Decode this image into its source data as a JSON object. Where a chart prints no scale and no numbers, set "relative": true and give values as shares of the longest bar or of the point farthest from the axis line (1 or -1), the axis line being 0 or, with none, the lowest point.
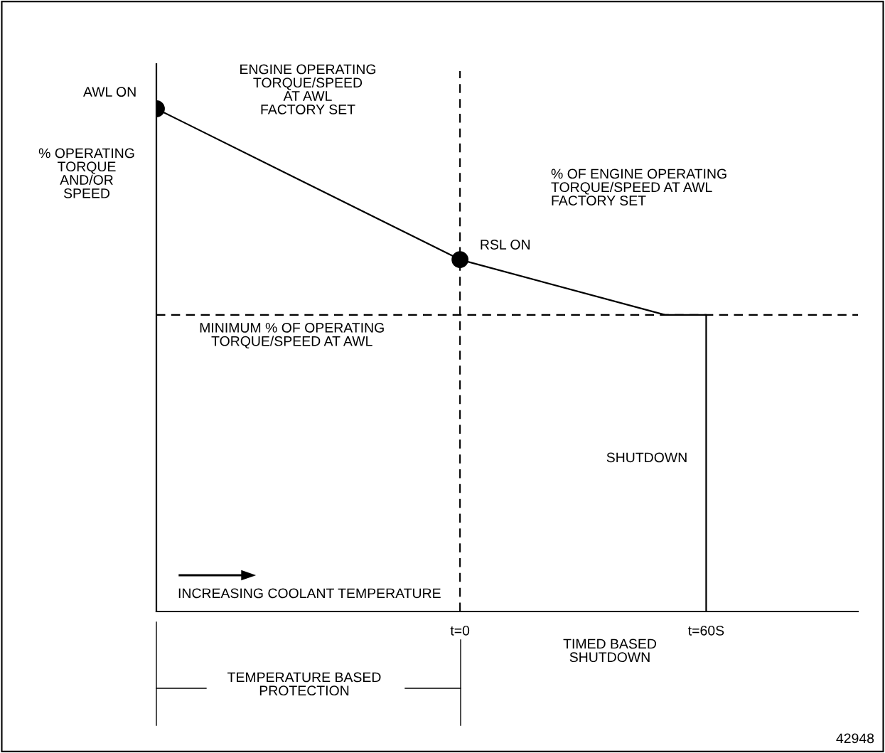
{
  "chart_data": {
    "type": "line",
    "relative": true,
    "ylabel": "% OPERATING\nTORQUE\nAND/OR\nSPEED",
    "xlim": [
      -74,
      97
    ],
    "xticks": [
      {
        "value": 0,
        "label": "t=0"
      },
      {
        "value": 60,
        "label": "t=60S"
      }
    ],
    "series": [
      {
        "color": "#000000",
        "marker": "none",
        "x": [
          -74,
          0,
          50,
          60,
          60
        ],
        "values": [
          1,
          0.7,
          0.59,
          0.59,
          0
        ]
      },
      {
        "type": "scatter",
        "color": "#000000",
        "marker": "circle",
        "x": [
          -74,
          0
        ],
        "values": [
          1,
          0.7
        ]
      }
    ],
    "ref_lines": [
      {
        "axis": "y",
        "value": 0.59,
        "label": "MINIMUM % OF OPERATING\nTORQUE/SPEED AT AWL",
        "color": "#000000",
        "line_style": "dashed"
      },
      {
        "axis": "x",
        "value": 0,
        "color": "#000000",
        "line_style": "dashed"
      }
    ],
    "annotations": [
      {
        "text": "AWL ON",
        "x": -74,
        "y": 1
      },
      {
        "text": "RSL ON",
        "x": 0,
        "y": 0.7
      },
      "ENGINE OPERATING\nTORQUE/SPEED\nAT AWL\nFACTORY SET",
      "% OF ENGINE OPERATING\nTORQUE/SPEED AT AWL\nFACTORY SET",
      "SHUTDOWN",
      "INCREASING COOLANT TEMPERATURE",
      "TIMED BASED\nSHUTDOWN",
      "TEMPERATURE BASED\nPROTECTION",
      "42948"
    ],
    "grid": false,
    "legend": false
  }
}
